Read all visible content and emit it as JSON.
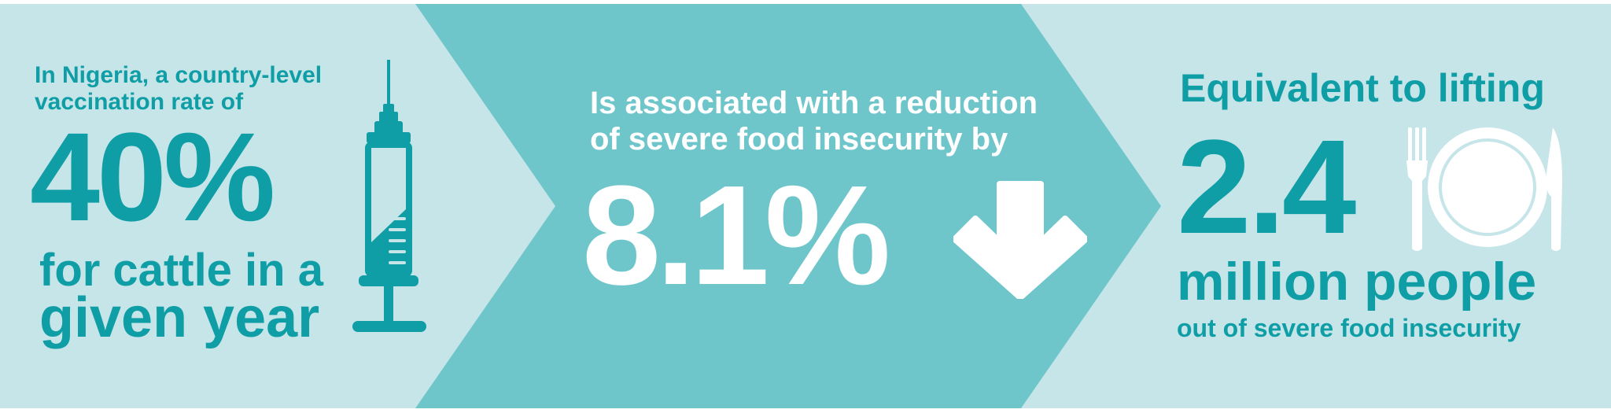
{
  "colors": {
    "light_panel": "#c6e5e8",
    "chevron": "#6ec6ca",
    "teal_text": "#0f9ea6",
    "white": "#ffffff"
  },
  "left": {
    "intro_line1": "In Nigeria, a country-level",
    "intro_line2": "vaccination rate of",
    "stat": "40%",
    "subject_line1": "for cattle in a",
    "subject_line2": "given year",
    "icon": "syringe-icon"
  },
  "middle": {
    "text_line1": "Is associated with a reduction",
    "text_line2": "of severe food insecurity by",
    "stat": "8.1%",
    "icon": "arrow-down-icon"
  },
  "right": {
    "text_line1": "Equivalent to lifting",
    "stat": "2.4",
    "text_line2": "million people",
    "text_line3": "out of severe food insecurity",
    "icon": "plate-fork-knife-icon"
  }
}
